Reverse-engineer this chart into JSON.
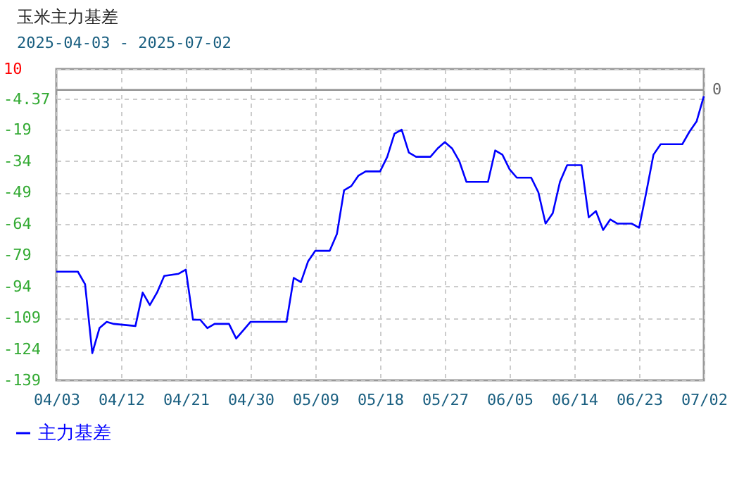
{
  "chart_data": {
    "type": "line",
    "title": "玉米主力基差",
    "subtitle": "2025-04-03 - 2025-07-02",
    "x": [
      "2025-04-03",
      "2025-04-06",
      "2025-04-07",
      "2025-04-08",
      "2025-04-09",
      "2025-04-10",
      "2025-04-11",
      "2025-04-14",
      "2025-04-15",
      "2025-04-16",
      "2025-04-17",
      "2025-04-18",
      "2025-04-20",
      "2025-04-21",
      "2025-04-22",
      "2025-04-23",
      "2025-04-24",
      "2025-04-25",
      "2025-04-27",
      "2025-04-28",
      "2025-04-29",
      "2025-04-30",
      "2025-05-05",
      "2025-05-06",
      "2025-05-07",
      "2025-05-08",
      "2025-05-09",
      "2025-05-11",
      "2025-05-12",
      "2025-05-13",
      "2025-05-14",
      "2025-05-15",
      "2025-05-16",
      "2025-05-18",
      "2025-05-19",
      "2025-05-20",
      "2025-05-21",
      "2025-05-22",
      "2025-05-23",
      "2025-05-25",
      "2025-05-26",
      "2025-05-27",
      "2025-05-28",
      "2025-05-29",
      "2025-05-30",
      "2025-06-02",
      "2025-06-03",
      "2025-06-04",
      "2025-06-05",
      "2025-06-06",
      "2025-06-08",
      "2025-06-09",
      "2025-06-10",
      "2025-06-11",
      "2025-06-12",
      "2025-06-13",
      "2025-06-15",
      "2025-06-16",
      "2025-06-17",
      "2025-06-18",
      "2025-06-19",
      "2025-06-20",
      "2025-06-22",
      "2025-06-23",
      "2025-06-24",
      "2025-06-25",
      "2025-06-26",
      "2025-06-29",
      "2025-06-30",
      "2025-07-01",
      "2025-07-02"
    ],
    "series": [
      {
        "name": "主力基差",
        "color": "#0000ff",
        "values": [
          -87,
          -87,
          -93,
          -126,
          -114,
          -111,
          -112,
          -113,
          -97,
          -103,
          -97,
          -89,
          -88,
          -86,
          -110,
          -110,
          -114,
          -112,
          -112,
          -119,
          -115,
          -111,
          -111,
          -90,
          -92,
          -82,
          -77,
          -77,
          -69,
          -48,
          -46,
          -41,
          -39,
          -39,
          -32,
          -21,
          -19,
          -30,
          -32,
          -32,
          -28,
          -25,
          -28,
          -34,
          -44,
          -44,
          -29,
          -31,
          -38,
          -42,
          -42,
          -49,
          -64,
          -59,
          -44,
          -36,
          -36,
          -61,
          -58,
          -67,
          -62,
          -64,
          -64,
          -66,
          -49,
          -31,
          -26,
          -26,
          -20,
          -15,
          -3
        ]
      }
    ],
    "xlim": [
      "2025-04-03",
      "2025-07-02"
    ],
    "xticks": [
      {
        "value": "2025-04-03",
        "label": "04/03"
      },
      {
        "value": "2025-04-12",
        "label": "04/12"
      },
      {
        "value": "2025-04-21",
        "label": "04/21"
      },
      {
        "value": "2025-04-30",
        "label": "04/30"
      },
      {
        "value": "2025-05-09",
        "label": "05/09"
      },
      {
        "value": "2025-05-18",
        "label": "05/18"
      },
      {
        "value": "2025-05-27",
        "label": "05/27"
      },
      {
        "value": "2025-06-05",
        "label": "06/05"
      },
      {
        "value": "2025-06-14",
        "label": "06/14"
      },
      {
        "value": "2025-06-23",
        "label": "06/23"
      },
      {
        "value": "2025-07-02",
        "label": "07/02"
      }
    ],
    "ylim": [
      -139,
      10
    ],
    "yticks": [
      10,
      -4.37,
      -19,
      -34,
      -49,
      -64,
      -79,
      -94,
      -109,
      -124,
      -139
    ],
    "ref_lines": [
      {
        "axis": "y",
        "value": 0,
        "label": "0",
        "color": "#999999"
      }
    ],
    "grid": true,
    "legend": "bottom",
    "marker": "none",
    "line_style": "solid"
  }
}
